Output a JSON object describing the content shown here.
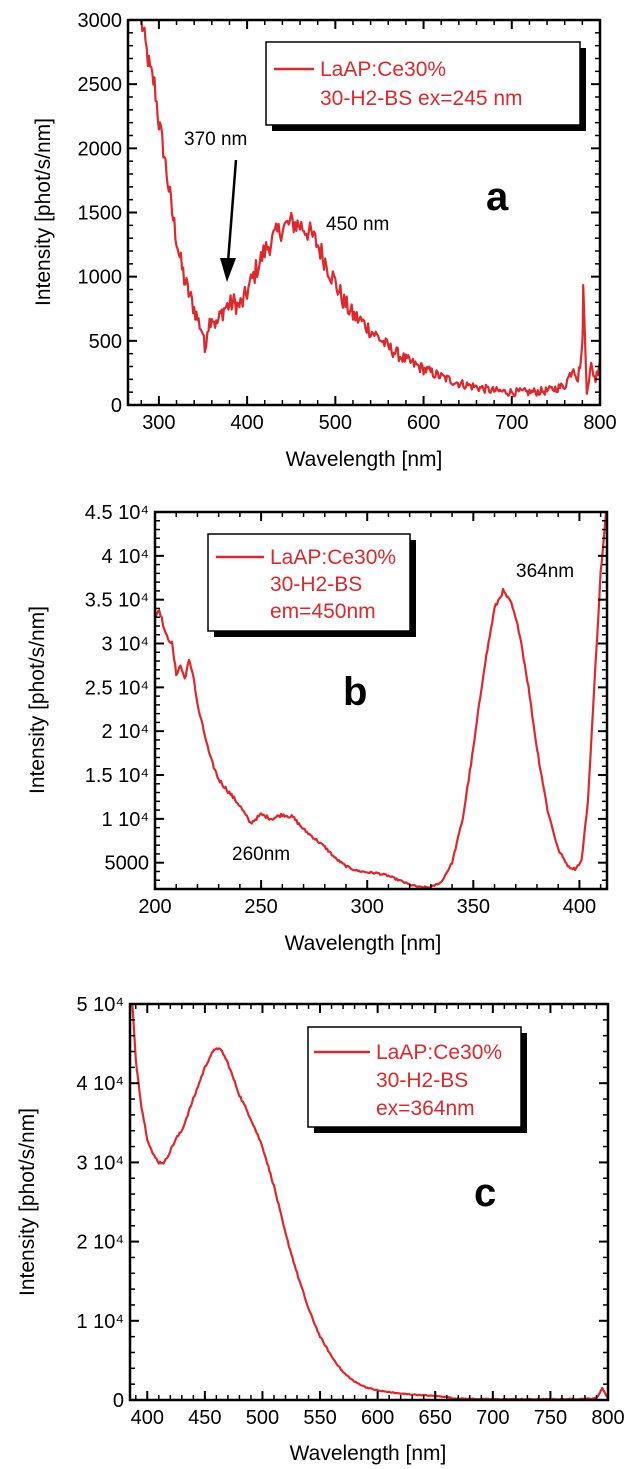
{
  "colors": {
    "series": "#e0272c",
    "axis": "#000000",
    "shadow": "#000000"
  },
  "chart_data": [
    {
      "type": "line",
      "panel_label": "a",
      "xlabel": "Wavelength [nm]",
      "ylabel": "Intensity [phot/s/nm]",
      "xlim": [
        265,
        800
      ],
      "ylim": [
        0,
        3000
      ],
      "xticks": [
        300,
        400,
        500,
        600,
        700,
        800
      ],
      "yticks": [
        0,
        500,
        1000,
        1500,
        2000,
        2500,
        3000
      ],
      "ytick_labels": [
        "0",
        "500",
        "1000",
        "1500",
        "2000",
        "2500",
        "3000"
      ],
      "legend": [
        "LaAP:Ce30%",
        "30-H2-BS ex=245 nm"
      ],
      "legend_position": "top-right",
      "noise": 130,
      "series": [
        {
          "x": [
            280,
            285,
            290,
            295,
            300,
            305,
            310,
            315,
            320,
            325,
            330,
            335,
            340,
            345,
            350,
            352,
            355,
            360,
            365,
            370,
            375,
            380,
            385,
            390,
            395,
            400,
            410,
            420,
            430,
            440,
            450,
            460,
            470,
            480,
            490,
            500,
            510,
            520,
            530,
            540,
            550,
            560,
            580,
            600,
            620,
            640,
            660,
            680,
            700,
            720,
            740,
            760,
            770,
            775,
            780,
            781,
            785,
            790,
            795,
            800
          ],
          "y": [
            3000,
            2800,
            2600,
            2500,
            2200,
            2000,
            1750,
            1500,
            1300,
            1100,
            950,
            850,
            750,
            650,
            560,
            420,
            600,
            700,
            620,
            700,
            760,
            780,
            800,
            770,
            800,
            880,
            1050,
            1200,
            1300,
            1380,
            1420,
            1400,
            1350,
            1250,
            1100,
            950,
            800,
            700,
            650,
            580,
            520,
            450,
            350,
            280,
            220,
            170,
            140,
            110,
            100,
            100,
            110,
            150,
            300,
            200,
            450,
            900,
            120,
            300,
            200,
            350
          ]
        }
      ],
      "annotations": [
        {
          "text": "370 nm",
          "x": 370,
          "y": 770,
          "arrow": true
        },
        {
          "text": "450 nm",
          "x": 495,
          "y": 1500
        }
      ]
    },
    {
      "type": "line",
      "panel_label": "b",
      "xlabel": "Wavelength [nm]",
      "ylabel": "Intensity [phot/s/nm]",
      "xlim": [
        200,
        413
      ],
      "ylim": [
        2000,
        45000
      ],
      "xticks": [
        200,
        250,
        300,
        350,
        400
      ],
      "yticks": [
        5000,
        10000,
        15000,
        20000,
        25000,
        30000,
        35000,
        40000,
        45000
      ],
      "ytick_labels": [
        "5000",
        "1 10⁴",
        "1.5 10⁴",
        "2 10⁴",
        "2.5 10⁴",
        "3 10⁴",
        "3.5 10⁴",
        "4 10⁴",
        "4.5 10⁴"
      ],
      "legend": [
        "LaAP:Ce30%",
        "30-H2-BS",
        "em=450nm"
      ],
      "legend_position": "top-left",
      "noise": 350,
      "series": [
        {
          "x": [
            200,
            202,
            205,
            208,
            210,
            212,
            214,
            216,
            218,
            220,
            223,
            226,
            230,
            235,
            240,
            245,
            250,
            255,
            260,
            265,
            270,
            275,
            280,
            285,
            290,
            295,
            300,
            305,
            310,
            315,
            320,
            325,
            330,
            335,
            340,
            345,
            350,
            355,
            360,
            364,
            368,
            372,
            376,
            380,
            385,
            390,
            395,
            398,
            401,
            404,
            407,
            410,
            413
          ],
          "y": [
            33000,
            34000,
            31000,
            30000,
            26500,
            27500,
            26000,
            28000,
            26500,
            23000,
            20000,
            17000,
            14500,
            13000,
            11500,
            9500,
            10500,
            10000,
            10500,
            10200,
            8800,
            7800,
            6800,
            5500,
            4600,
            4100,
            3900,
            3800,
            3500,
            3000,
            2500,
            2200,
            2200,
            2800,
            5000,
            10000,
            18000,
            27000,
            34000,
            36000,
            34500,
            31000,
            25000,
            18000,
            11000,
            6500,
            4500,
            4300,
            5200,
            12000,
            25000,
            38000,
            46000
          ]
        }
      ],
      "annotations": [
        {
          "text": "364nm",
          "x": 370,
          "y": 38000
        },
        {
          "text": "260nm",
          "x": 260,
          "y": 5000
        }
      ]
    },
    {
      "type": "line",
      "panel_label": "c",
      "xlabel": "Wavelength [nm]",
      "ylabel": "Intensity [phot/s/nm]",
      "xlim": [
        385,
        800
      ],
      "ylim": [
        0,
        50000
      ],
      "xticks": [
        400,
        450,
        500,
        550,
        600,
        650,
        700,
        750,
        800
      ],
      "yticks": [
        0,
        10000,
        20000,
        30000,
        40000,
        50000
      ],
      "ytick_labels": [
        "0",
        "1 10⁴",
        "2 10⁴",
        "3 10⁴",
        "4 10⁴",
        "5 10⁴"
      ],
      "legend": [
        "LaAP:Ce30%",
        "30-H2-BS",
        "ex=364nm"
      ],
      "legend_position": "top-right",
      "noise": 250,
      "series": [
        {
          "x": [
            387,
            390,
            395,
            400,
            405,
            410,
            415,
            420,
            425,
            430,
            440,
            450,
            455,
            460,
            465,
            470,
            480,
            490,
            500,
            510,
            520,
            530,
            540,
            550,
            560,
            570,
            580,
            590,
            600,
            610,
            620,
            630,
            640,
            650,
            660,
            665,
            680,
            700,
            720,
            740,
            760,
            780,
            790,
            795,
            800
          ],
          "y": [
            50000,
            43000,
            37000,
            33000,
            31000,
            30000,
            30000,
            31500,
            33000,
            34000,
            38000,
            42000,
            43500,
            44500,
            44000,
            42500,
            38500,
            35500,
            32000,
            27000,
            21000,
            16000,
            11500,
            8000,
            5500,
            3500,
            2300,
            1600,
            1200,
            1000,
            800,
            700,
            600,
            500,
            400,
            200,
            150,
            100,
            100,
            100,
            100,
            150,
            200,
            1500,
            200
          ]
        }
      ]
    }
  ]
}
